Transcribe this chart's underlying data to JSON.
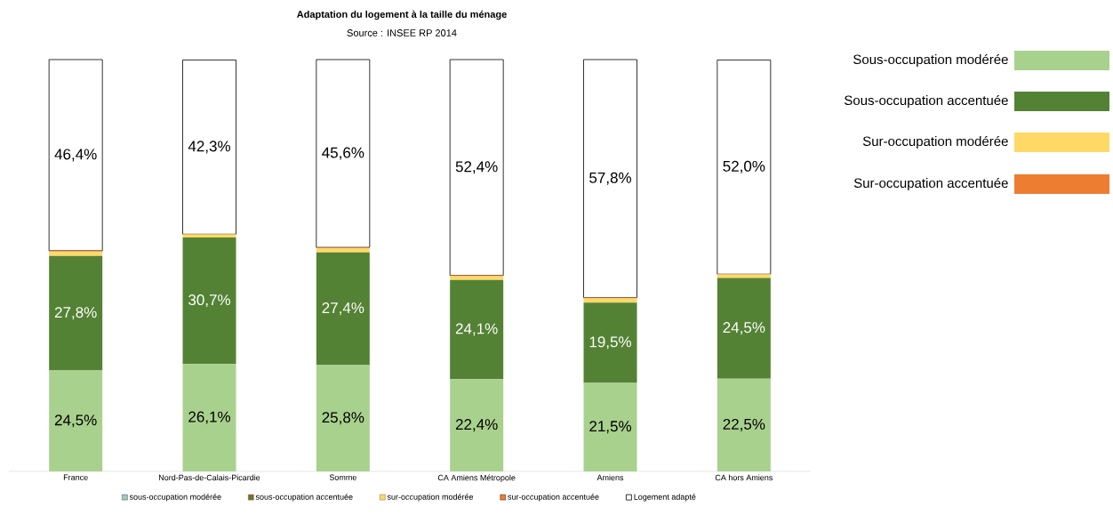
{
  "chart_data": {
    "type": "bar",
    "stacked": true,
    "title": "Adaptation du logement à la taille du ménage",
    "subtitle": "Source : INSEE RP 2014",
    "categories": [
      "France",
      "Nord-Pas-de-Calais-Picardie",
      "Somme",
      "CA Amiens Métropole",
      "Amiens",
      "CA hors Amiens"
    ],
    "ylim": [
      0,
      100
    ],
    "tick_labels": "x",
    "legend": "bottom",
    "series": [
      {
        "name": "sous-occupation modérée",
        "color": "#a9d18e",
        "values": [
          24.5,
          26.1,
          25.8,
          22.4,
          21.5,
          22.5
        ],
        "value_labels": [
          "24,5%",
          "26,1%",
          "25,8%",
          "22,4%",
          "21,5%",
          "22,5%"
        ]
      },
      {
        "name": "sous-occupation accentuée",
        "color": "#548235",
        "values": [
          27.8,
          30.7,
          27.4,
          24.1,
          19.5,
          24.5
        ],
        "value_labels": [
          "27,8%",
          "30,7%",
          "27,4%",
          "24,1%",
          "19,5%",
          "24,5%"
        ]
      },
      {
        "name": "sur-occupation modérée",
        "color": "#ffd966",
        "values": [
          1.1,
          0.8,
          1.0,
          0.9,
          1.0,
          0.9
        ]
      },
      {
        "name": "sur-occupation accentuée",
        "color": "#ed7d31",
        "values": [
          0.2,
          null,
          0.2,
          0.2,
          0.2,
          null
        ]
      },
      {
        "name": "Logement adapté",
        "color": "#ffffff",
        "values": [
          46.4,
          42.3,
          45.6,
          52.4,
          57.8,
          52.0
        ],
        "value_labels": [
          "46,4%",
          "42,3%",
          "45,6%",
          "52,4%",
          "57,8%",
          "52,0%"
        ]
      }
    ],
    "annotations": [
      "Sous-occupation modérée",
      "Sous-occupation accentuée",
      "Sur-occupation modérée",
      "Sur-occupation accentuée"
    ]
  }
}
